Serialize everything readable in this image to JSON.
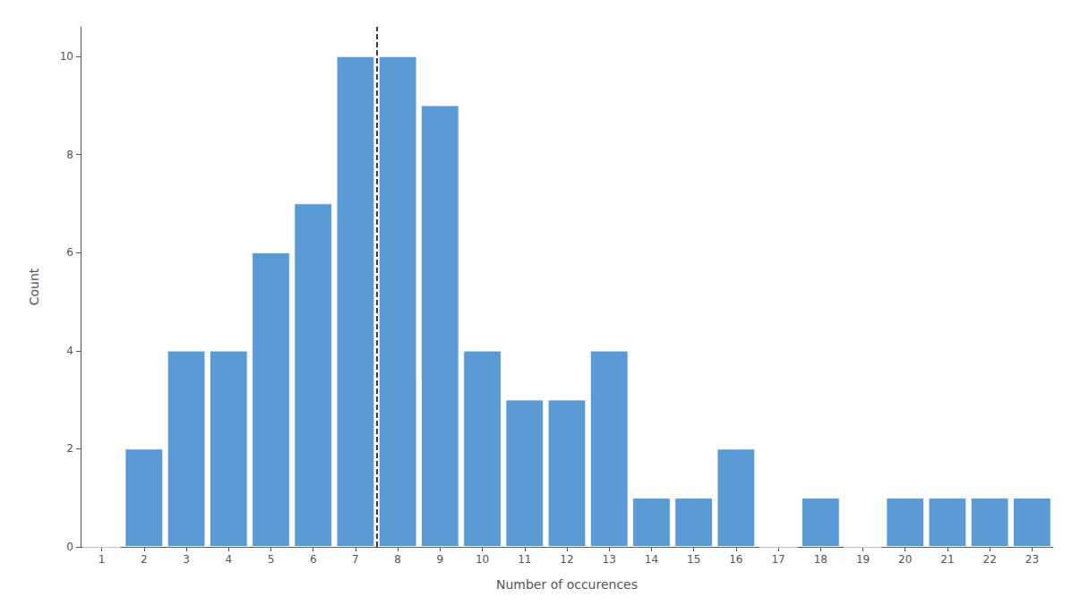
{
  "chart_data": {
    "type": "bar",
    "x": [
      1,
      2,
      3,
      4,
      5,
      6,
      7,
      8,
      9,
      10,
      11,
      12,
      13,
      14,
      15,
      16,
      17,
      18,
      19,
      20,
      21,
      22,
      23
    ],
    "values": [
      0,
      2,
      4,
      4,
      6,
      7,
      10,
      10,
      9,
      4,
      3,
      3,
      4,
      1,
      1,
      2,
      0,
      1,
      0,
      1,
      1,
      1,
      1
    ],
    "color": "#5b9bd5",
    "xlabel": "Number of occurences",
    "ylabel": "Count",
    "xlim": [
      0.5,
      23.5
    ],
    "xticks": [
      1,
      2,
      3,
      4,
      5,
      6,
      7,
      8,
      9,
      10,
      11,
      12,
      13,
      14,
      15,
      16,
      17,
      18,
      19,
      20,
      21,
      22,
      23
    ],
    "ylim": [
      0,
      10.6
    ],
    "yticks": [
      0,
      2,
      4,
      6,
      8,
      10
    ],
    "grid": false,
    "vlines": [
      {
        "x": 7.5,
        "color": "black",
        "line_style": "dashed"
      }
    ]
  }
}
